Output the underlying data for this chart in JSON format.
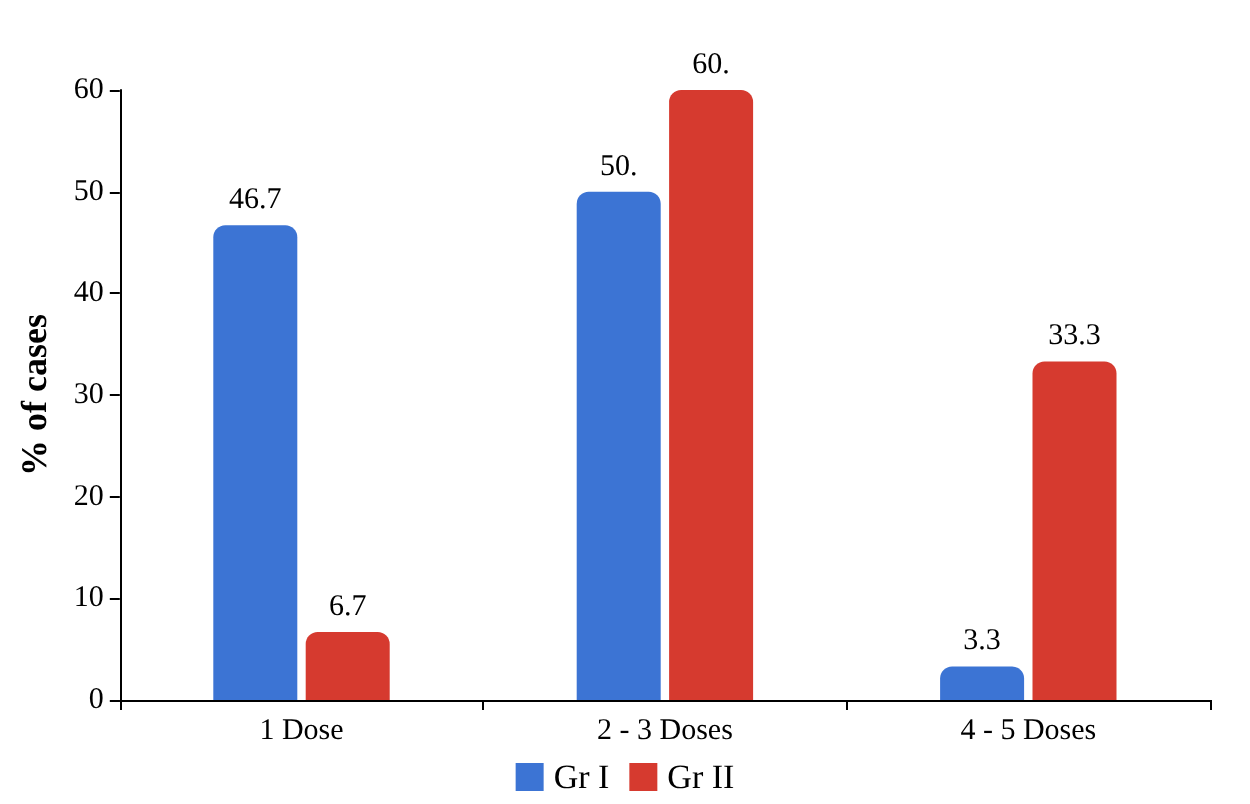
{
  "chart_data": {
    "type": "bar",
    "ylabel": "% of cases",
    "categories": [
      "1 Dose",
      "2 - 3 Doses",
      "4 - 5 Doses"
    ],
    "series": [
      {
        "name": "Gr I",
        "color": "#3c74d4",
        "values": [
          46.7,
          50,
          3.3
        ],
        "value_labels": [
          "46.7",
          "50.",
          "3.3"
        ]
      },
      {
        "name": "Gr II",
        "color": "#d63a2f",
        "values": [
          6.7,
          60,
          33.3
        ],
        "value_labels": [
          "6.7",
          "60.",
          "33.3"
        ]
      }
    ],
    "ylim": [
      0,
      60
    ],
    "yticks": [
      0,
      10,
      20,
      30,
      40,
      50,
      60
    ],
    "grid": false,
    "legend": "bottom"
  }
}
